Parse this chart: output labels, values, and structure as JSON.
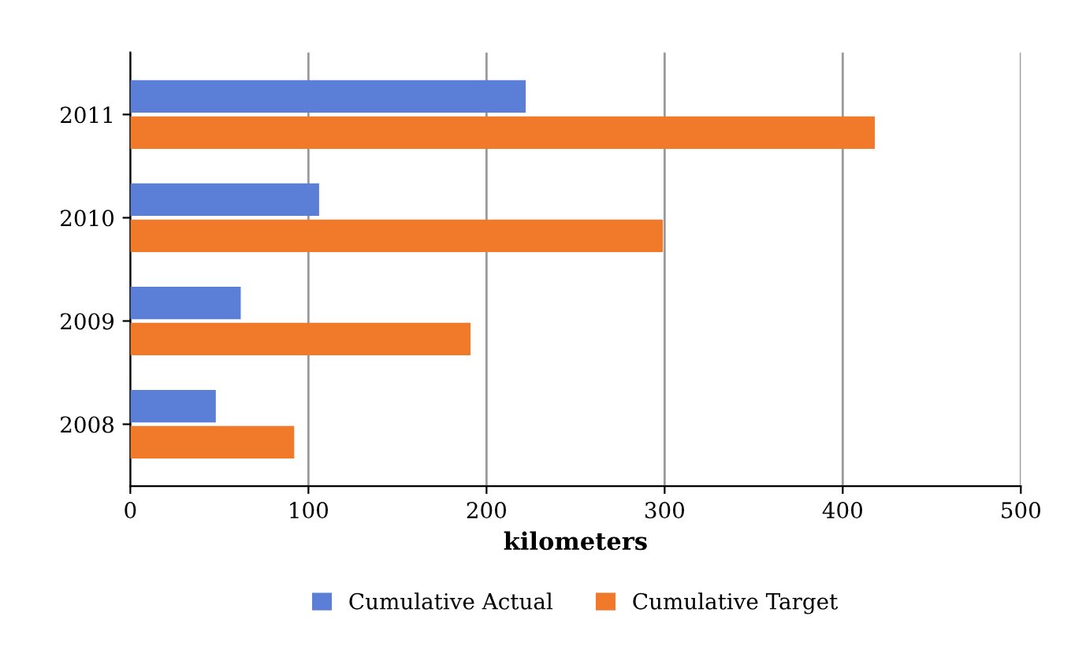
{
  "chart_data": {
    "type": "bar",
    "orientation": "horizontal",
    "categories": [
      "2011",
      "2010",
      "2009",
      "2008"
    ],
    "series": [
      {
        "name": "Cumulative Actual",
        "color": "#5b7fd6",
        "values": [
          222,
          106,
          62,
          48
        ]
      },
      {
        "name": "Cumulative Target",
        "color": "#f07a2a",
        "values": [
          418,
          299,
          191,
          92
        ]
      }
    ],
    "xlabel": "kilometers",
    "xlim": [
      0,
      500
    ],
    "xticks": [
      0,
      100,
      200,
      300,
      400,
      500
    ],
    "grid": "x",
    "legend": "bottom"
  }
}
